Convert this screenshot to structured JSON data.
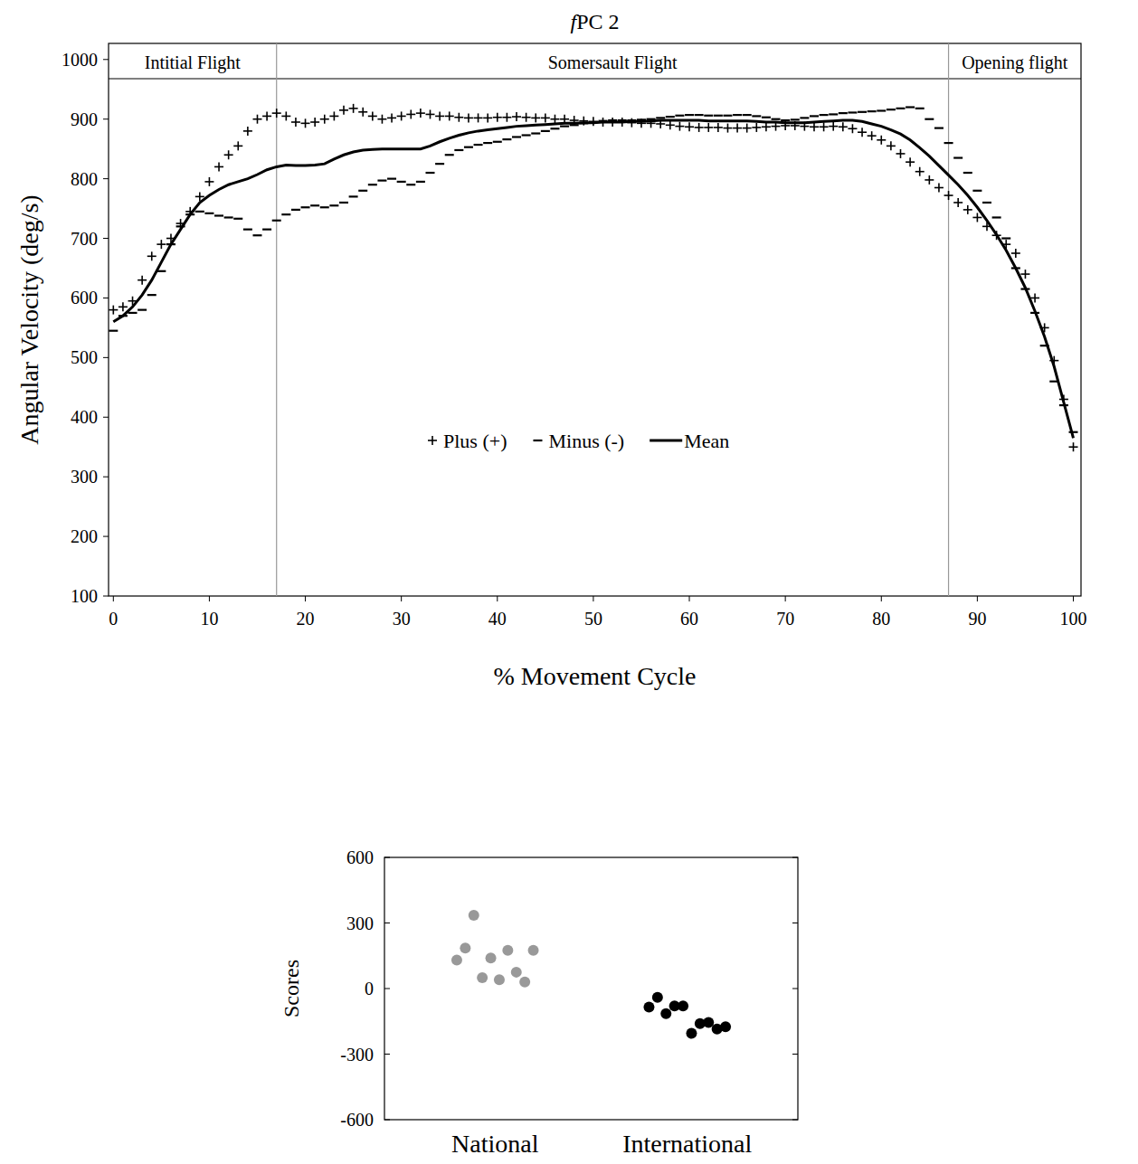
{
  "chart_data": [
    {
      "type": "line",
      "title": "fPC 2",
      "x_label": "% Movement Cycle",
      "y_label": "Angular Velocity (deg/s)",
      "phase_labels": [
        "Intitial Flight",
        "Somersault Flight",
        "Opening flight"
      ],
      "phase_bounds": [
        17,
        87
      ],
      "xlim": [
        -0.5,
        100.8
      ],
      "ylim": [
        100,
        1027
      ],
      "xticks": [
        0,
        10,
        20,
        30,
        40,
        50,
        60,
        70,
        80,
        90,
        100
      ],
      "yticks": [
        100,
        200,
        300,
        400,
        500,
        600,
        700,
        800,
        900,
        1000
      ],
      "grid": false,
      "legend": "center",
      "x": [
        0,
        1,
        2,
        3,
        4,
        5,
        6,
        7,
        8,
        9,
        10,
        11,
        12,
        13,
        14,
        15,
        16,
        17,
        18,
        19,
        20,
        21,
        22,
        23,
        24,
        25,
        26,
        27,
        28,
        29,
        30,
        31,
        32,
        33,
        34,
        35,
        36,
        37,
        38,
        39,
        40,
        41,
        42,
        43,
        44,
        45,
        46,
        47,
        48,
        49,
        50,
        51,
        52,
        53,
        54,
        55,
        56,
        57,
        58,
        59,
        60,
        61,
        62,
        63,
        64,
        65,
        66,
        67,
        68,
        69,
        70,
        71,
        72,
        73,
        74,
        75,
        76,
        77,
        78,
        79,
        80,
        81,
        82,
        83,
        84,
        85,
        86,
        87,
        88,
        89,
        90,
        91,
        92,
        93,
        94,
        95,
        96,
        97,
        98,
        99,
        100
      ],
      "series": [
        {
          "name": "Plus (+)",
          "color": "#000000",
          "marker": "plus",
          "line_style": "none",
          "values": [
            580,
            585,
            595,
            630,
            670,
            690,
            700,
            725,
            745,
            770,
            795,
            820,
            840,
            855,
            880,
            900,
            905,
            910,
            905,
            895,
            893,
            895,
            900,
            905,
            915,
            918,
            912,
            905,
            900,
            902,
            905,
            908,
            910,
            908,
            905,
            905,
            903,
            902,
            902,
            902,
            903,
            903,
            904,
            903,
            902,
            902,
            900,
            900,
            898,
            897,
            896,
            895,
            895,
            895,
            894,
            893,
            893,
            892,
            890,
            888,
            887,
            886,
            886,
            886,
            885,
            885,
            885,
            886,
            887,
            888,
            889,
            889,
            888,
            887,
            887,
            888,
            887,
            884,
            878,
            872,
            865,
            855,
            842,
            828,
            812,
            798,
            785,
            772,
            760,
            748,
            735,
            720,
            705,
            690,
            675,
            640,
            600,
            550,
            495,
            430,
            350
          ]
        },
        {
          "name": "Minus (-)",
          "color": "#000000",
          "marker": "dash",
          "line_style": "none",
          "values": [
            545,
            570,
            575,
            580,
            605,
            645,
            690,
            720,
            740,
            745,
            742,
            738,
            735,
            733,
            715,
            705,
            715,
            730,
            740,
            748,
            752,
            755,
            752,
            755,
            760,
            770,
            780,
            790,
            797,
            800,
            795,
            790,
            795,
            810,
            825,
            840,
            848,
            853,
            857,
            860,
            862,
            866,
            870,
            873,
            876,
            880,
            884,
            888,
            890,
            893,
            895,
            897,
            898,
            898,
            898,
            899,
            900,
            902,
            904,
            906,
            907,
            907,
            906,
            906,
            906,
            907,
            907,
            905,
            903,
            900,
            898,
            899,
            902,
            905,
            907,
            908,
            910,
            911,
            912,
            913,
            914,
            916,
            918,
            920,
            918,
            900,
            885,
            860,
            835,
            810,
            780,
            760,
            735,
            700,
            650,
            615,
            575,
            520,
            460,
            420,
            375
          ]
        },
        {
          "name": "Mean",
          "color": "#000000",
          "marker": "none",
          "line_style": "solid",
          "values": [
            560,
            570,
            585,
            605,
            630,
            660,
            690,
            715,
            740,
            760,
            772,
            782,
            790,
            795,
            800,
            807,
            815,
            820,
            823,
            822,
            822,
            823,
            825,
            833,
            840,
            845,
            848,
            849,
            850,
            850,
            850,
            850,
            850,
            855,
            862,
            868,
            873,
            877,
            880,
            882,
            884,
            886,
            888,
            889,
            890,
            891,
            892,
            893,
            893,
            894,
            894,
            895,
            895,
            895,
            896,
            896,
            897,
            898,
            898,
            898,
            898,
            898,
            897,
            897,
            897,
            897,
            897,
            896,
            895,
            895,
            894,
            894,
            894,
            895,
            896,
            897,
            898,
            898,
            896,
            892,
            888,
            882,
            875,
            865,
            852,
            838,
            822,
            806,
            790,
            772,
            752,
            730,
            706,
            680,
            650,
            617,
            578,
            535,
            485,
            425,
            365
          ]
        }
      ]
    },
    {
      "type": "strip",
      "y_label": "Scores",
      "categories": [
        "National",
        "International"
      ],
      "colors": [
        "#999999",
        "#000000"
      ],
      "values": [
        [
          130,
          185,
          335,
          50,
          140,
          40,
          175,
          75,
          30,
          175
        ],
        [
          -85,
          -40,
          -115,
          -80,
          -80,
          -205,
          -160,
          -155,
          -185,
          -175
        ]
      ],
      "ylim": [
        -600,
        600
      ],
      "yticks": [
        -600,
        -300,
        0,
        300,
        600
      ],
      "grid": false
    }
  ]
}
